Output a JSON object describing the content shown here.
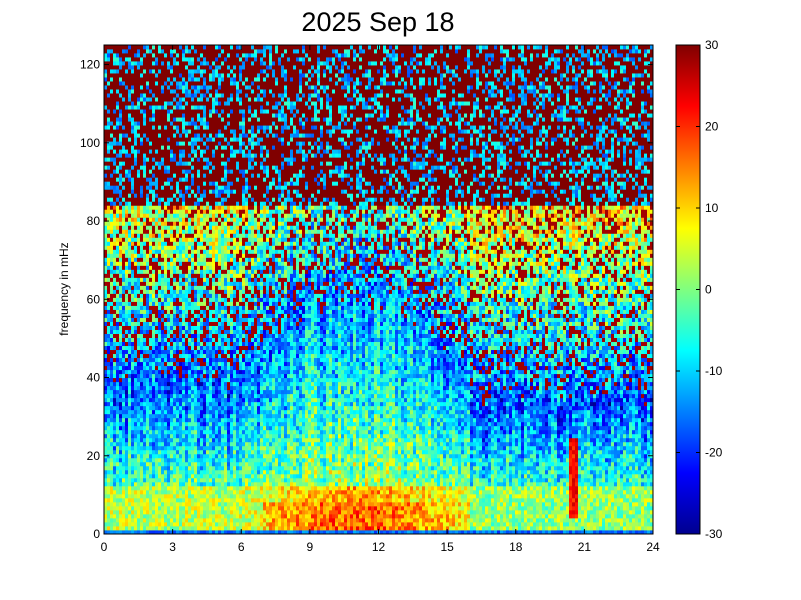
{
  "chart_data": {
    "type": "heatmap",
    "title": "2025 Sep 18",
    "xlabel": "",
    "ylabel": "frequency in mHz",
    "xlim": [
      0,
      24
    ],
    "ylim": [
      0,
      125
    ],
    "x_ticks": [
      "0",
      "3",
      "6",
      "9",
      "12",
      "15",
      "18",
      "21",
      "24"
    ],
    "y_ticks": [
      "0",
      "20",
      "40",
      "60",
      "80",
      "100",
      "120"
    ],
    "colorbar": {
      "colormap": "jet",
      "range": [
        -30,
        30
      ],
      "ticks": [
        "-30",
        "-20",
        "-10",
        "0",
        "10",
        "20",
        "30"
      ]
    },
    "grid": false,
    "approx_structure": {
      "note_values_in_dB": true,
      "low_freq_band_0_10_mHz": 15,
      "mid_freq_activity_hours": [
        6,
        16
      ],
      "activity_top_mHz": 62,
      "background_above_80_mHz": 30,
      "narrow_feature_hour": 20.5,
      "narrow_feature_top_mHz": 25
    }
  }
}
